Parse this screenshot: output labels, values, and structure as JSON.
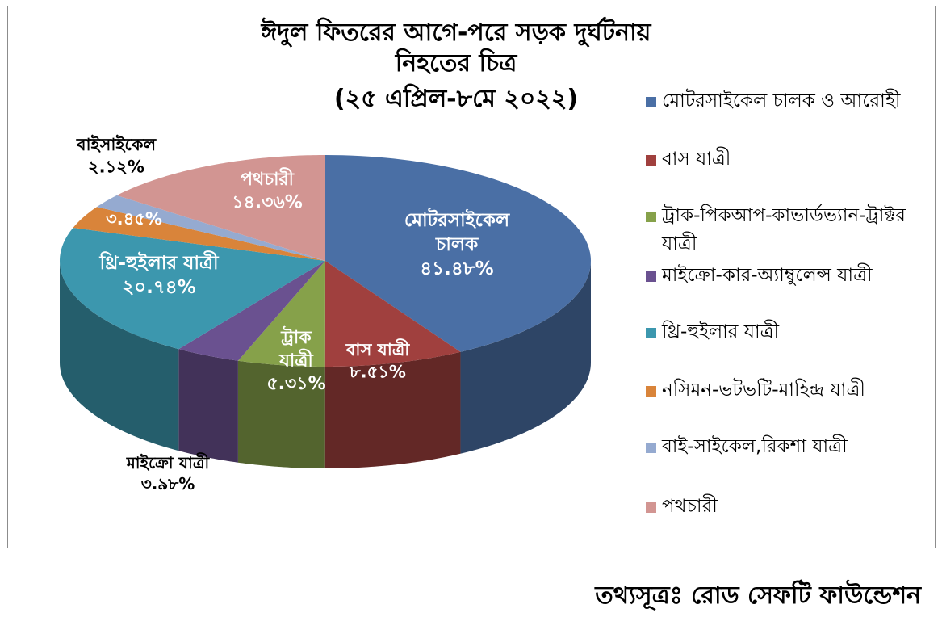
{
  "title_lines": [
    "ঈদুল ফিতরের আগে-পরে সড়ক দুর্ঘটনায়",
    "নিহতের চিত্র",
    "(২৫ এপ্রিল-৮মে ২০২২)"
  ],
  "source_note": "তথ্যসূত্রঃ রোড সেফটি ফাউন্ডেশন",
  "chart_data": {
    "type": "pie",
    "title": "ঈদুল ফিতরের আগে-পরে সড়ক দুর্ঘটনায় নিহতের চিত্র (২৫ এপ্রিল-৮মে ২০২২)",
    "style": "3d",
    "legend_position": "right",
    "slices": [
      {
        "legend": "মোটরসাইকেল চালক ও আরোহী",
        "label": "মোটরসাইকেল চালক",
        "value": 41.48,
        "value_text": "৪১.৪৮%",
        "color": "#4A6FA5"
      },
      {
        "legend": "বাস যাত্রী",
        "label": "বাস যাত্রী",
        "value": 8.51,
        "value_text": "৮.৫১%",
        "color": "#A0403E"
      },
      {
        "legend": "ট্রাক-পিকআপ-কাভার্ডভ্যান-ট্রাক্টর যাত্রী",
        "label": "ট্রাক যাত্রী",
        "value": 5.31,
        "value_text": "৫.৩১%",
        "color": "#86A14A"
      },
      {
        "legend": " মাইক্রো-কার-অ্যাম্বুলেন্স যাত্রী",
        "label": "মাইক্রো যাত্রী",
        "value": 3.98,
        "value_text": "৩.৯৮%",
        "color": "#6A5190"
      },
      {
        "legend": "থ্রি-হুইলার যাত্রী",
        "label": "থ্রি-হুইলার যাত্রী",
        "value": 20.74,
        "value_text": "২০.৭৪%",
        "color": "#3C97AE"
      },
      {
        "legend": "নসিমন-ভটভটি-মাহিন্দ্র যাত্রী",
        "label": "",
        "value": 3.45,
        "value_text": "৩.৪৫%",
        "color": "#D9843A"
      },
      {
        "legend": "বাই-সাইকেল,রিকশা যাত্রী",
        "label": "বাইসাইকেল",
        "value": 2.12,
        "value_text": "২.১২%",
        "color": "#95AAD0"
      },
      {
        "legend": "পথচারী",
        "label": "পথচারী",
        "value": 14.36,
        "value_text": "১৪.৩৬%",
        "color": "#D29592"
      }
    ]
  }
}
